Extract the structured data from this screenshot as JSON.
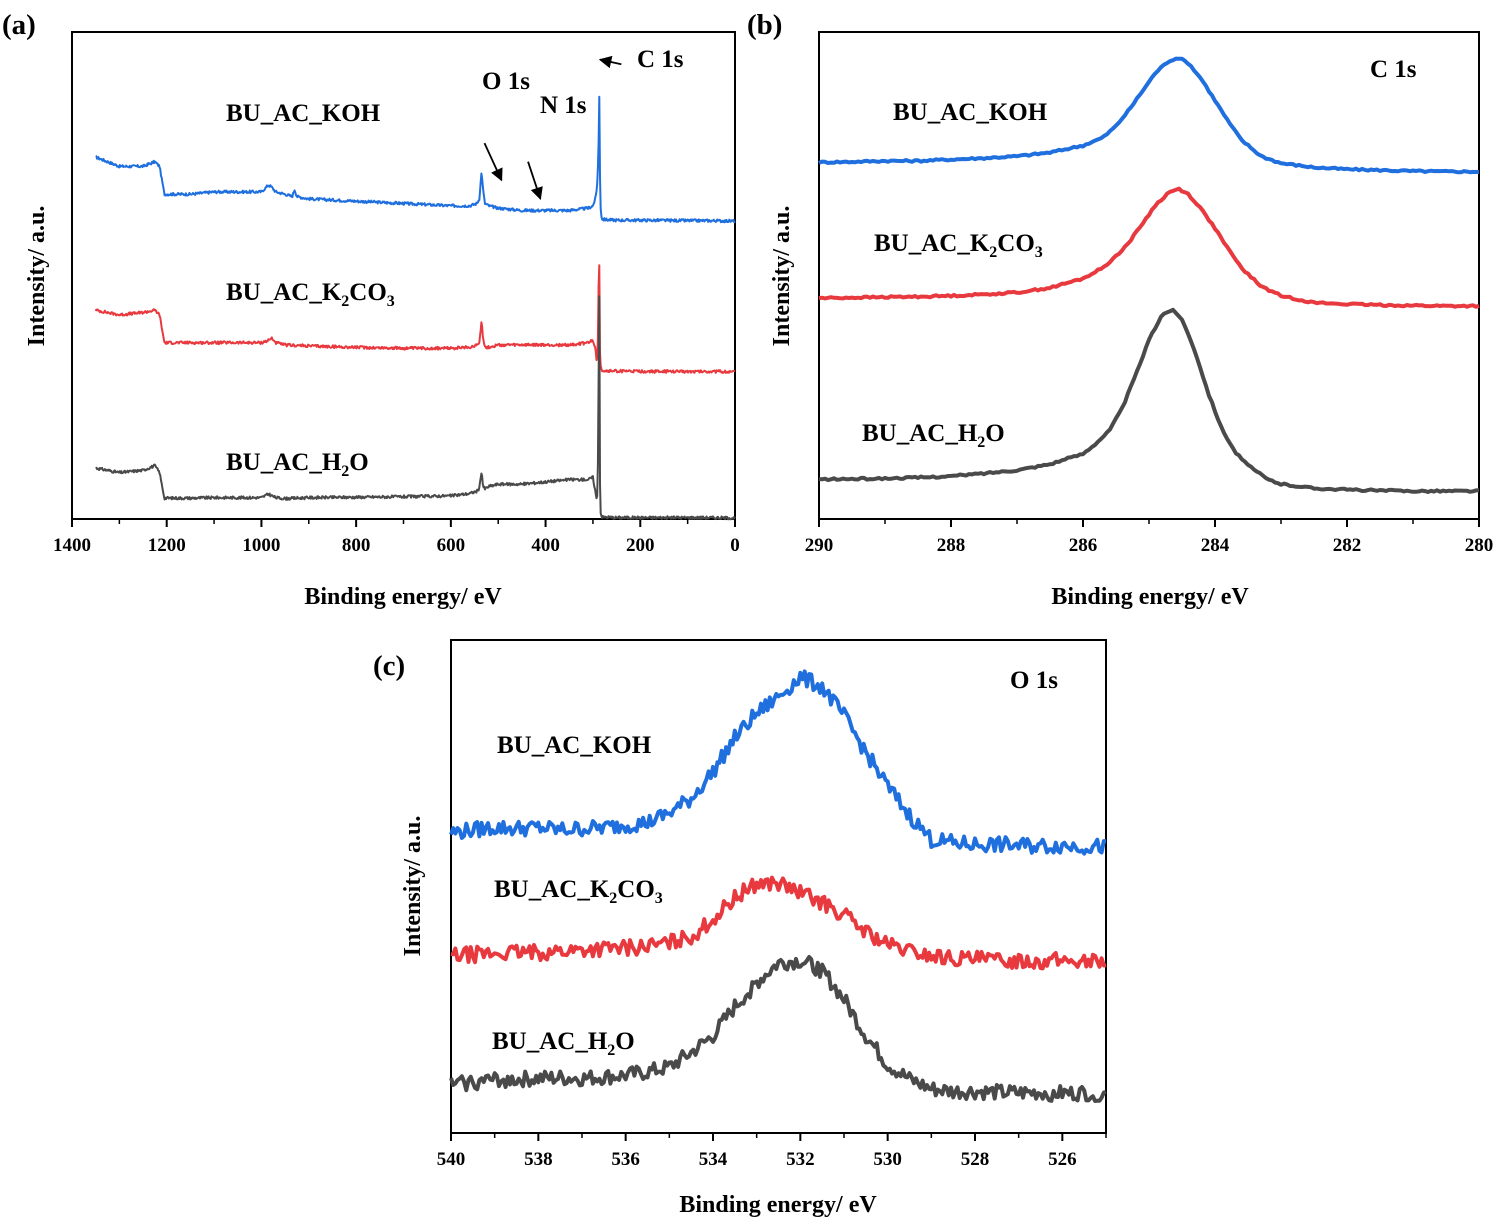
{
  "chart_data": [
    {
      "panel": "(a)",
      "type": "line",
      "title": "",
      "xlabel": "Binding energy/ eV",
      "ylabel": "Intensity/ a.u.",
      "xlim": [
        1400,
        0
      ],
      "x_reversed": true,
      "xticks": [
        1400,
        1200,
        1000,
        800,
        600,
        400,
        200,
        0
      ],
      "ylim": [
        0,
        100
      ],
      "y_ticks_visible": false,
      "series": [
        {
          "name": "BU_AC_KOH",
          "label_main": "BU_AC_KOH",
          "label_sub": "",
          "label_tail": "",
          "color": "#1f6fde",
          "offset": 66,
          "x": [
            1350,
            1300,
            1250,
            1225,
            1215,
            1205,
            1150,
            1100,
            1000,
            985,
            978,
            970,
            950,
            935,
            930,
            925,
            900,
            800,
            700,
            600,
            560,
            545,
            540,
            535,
            532,
            528,
            520,
            500,
            450,
            400,
            350,
            310,
            300,
            295,
            292,
            290,
            288,
            287,
            286,
            285,
            284,
            283,
            282,
            281,
            280,
            270,
            250,
            200,
            100,
            50,
            0
          ],
          "y": [
            78,
            76,
            76,
            77,
            76,
            70,
            70,
            70.5,
            70.5,
            72,
            71.5,
            70.5,
            70,
            69.5,
            71,
            69.5,
            69,
            68.5,
            68,
            67.5,
            67.5,
            68,
            69,
            75,
            71,
            68,
            67.5,
            67,
            66.5,
            66.5,
            66.5,
            67,
            67.5,
            69,
            71,
            74,
            81,
            97,
            85,
            74,
            68,
            66,
            65.2,
            64.8,
            64.6,
            64.5,
            64.4,
            64.4,
            64.3,
            64.3,
            64.2
          ]
        },
        {
          "name": "BU_AC_K2CO3",
          "label_main": "BU_AC_K",
          "label_sub": "2",
          "label_tail": "CO3",
          "color": "#e8393f",
          "offset": 33,
          "x": [
            1350,
            1300,
            1250,
            1225,
            1215,
            1205,
            1150,
            1100,
            1000,
            985,
            978,
            970,
            950,
            900,
            800,
            700,
            600,
            560,
            545,
            540,
            535,
            532,
            528,
            520,
            500,
            450,
            400,
            350,
            310,
            300,
            295,
            292,
            290,
            288,
            287,
            286,
            285,
            284,
            283,
            282,
            281,
            280,
            270,
            250,
            200,
            100,
            50,
            0
          ],
          "y": [
            45,
            44,
            44.5,
            45,
            44,
            38,
            38,
            38,
            38,
            38.5,
            39,
            38,
            37.5,
            37.3,
            37,
            36.8,
            36.8,
            37,
            37.5,
            38,
            43,
            39,
            37,
            37,
            37.5,
            37.5,
            37.5,
            37.5,
            38,
            38.5,
            37,
            34,
            35,
            50,
            65,
            45,
            36,
            33.5,
            32.8,
            32.4,
            32.1,
            32,
            31.9,
            31.9,
            31.8,
            31.8,
            31.8,
            31.7
          ]
        },
        {
          "name": "BU_AC_H2O",
          "label_main": "BU_AC_H",
          "label_sub": "2",
          "label_tail": "O",
          "color": "#4a4a4a",
          "offset": 0,
          "x": [
            1350,
            1300,
            1250,
            1225,
            1215,
            1205,
            1150,
            1100,
            1000,
            985,
            978,
            970,
            950,
            900,
            800,
            700,
            600,
            560,
            545,
            540,
            535,
            532,
            528,
            520,
            500,
            450,
            400,
            350,
            310,
            300,
            295,
            292,
            290,
            288,
            287,
            286,
            285,
            284,
            283,
            282,
            281,
            280,
            270,
            250,
            200,
            100,
            50,
            0
          ],
          "y": [
            11,
            10,
            10.5,
            11.5,
            10,
            4.5,
            4.5,
            4.6,
            4.6,
            5.4,
            5,
            4.6,
            4.4,
            4.6,
            4.7,
            4.8,
            5,
            5.5,
            6,
            6.5,
            10.5,
            7,
            6.5,
            7,
            7.5,
            7.5,
            8,
            8.5,
            8.5,
            9,
            6,
            4,
            6,
            30,
            66,
            30,
            8,
            2,
            0.8,
            0.6,
            0.5,
            0.4,
            0.4,
            0.3,
            0.3,
            0.3,
            0.3,
            0.2
          ]
        }
      ],
      "annotations": [
        {
          "text": "O 1s",
          "arrow_from": [
            529,
            81
          ],
          "arrow_to": [
            493,
            73
          ]
        },
        {
          "text": "N 1s",
          "arrow_from": [
            437,
            77
          ],
          "arrow_to": [
            411,
            69
          ]
        },
        {
          "text": "C 1s",
          "arrow_from": [
            240,
            98
          ],
          "arrow_to": [
            285,
            99
          ]
        }
      ]
    },
    {
      "panel": "(b)",
      "type": "line",
      "title": "C 1s",
      "xlabel": "Binding energy/ eV",
      "ylabel": "Intensity/ a.u.",
      "xlim": [
        290,
        280
      ],
      "x_reversed": true,
      "xticks": [
        290,
        288,
        286,
        284,
        282,
        280
      ],
      "ylim": [
        0,
        100
      ],
      "y_ticks_visible": false,
      "series": [
        {
          "name": "BU_AC_KOH",
          "label_main": "BU_AC_KOH",
          "label_sub": "",
          "label_tail": "",
          "color": "#1f6fde",
          "x": [
            290,
            289.5,
            289,
            288.5,
            288,
            287.5,
            287,
            286.5,
            286,
            285.7,
            285.5,
            285.3,
            285.1,
            284.9,
            284.7,
            284.55,
            284.4,
            284.2,
            284,
            283.8,
            283.6,
            283.3,
            283,
            282.5,
            282,
            281.5,
            281,
            280.5,
            280
          ],
          "y": [
            73.7,
            73.8,
            74,
            74,
            74.3,
            74.6,
            75,
            75.8,
            77.3,
            79,
            81.5,
            85,
            89,
            93,
            95.5,
            96.2,
            95,
            91.5,
            87,
            82.5,
            78.5,
            75,
            73.5,
            72.6,
            72.2,
            72,
            71.8,
            71.7,
            71.7
          ]
        },
        {
          "name": "BU_AC_K2CO3",
          "label_main": "BU_AC_K",
          "label_sub": "2",
          "label_tail": "CO3",
          "color": "#e8393f",
          "x": [
            290,
            289.5,
            289,
            288.5,
            288,
            287.5,
            287,
            286.5,
            286,
            285.7,
            285.5,
            285.3,
            285.1,
            284.9,
            284.7,
            284.55,
            284.4,
            284.2,
            284,
            283.8,
            283.6,
            283.3,
            283,
            282.5,
            282,
            281.5,
            281,
            280.5,
            280
          ],
          "y": [
            44.5,
            44.6,
            44.7,
            44.8,
            45,
            45.3,
            45.7,
            46.7,
            48.7,
            51,
            53.5,
            56.5,
            60.5,
            64.5,
            67.2,
            68,
            66.8,
            63.5,
            59.5,
            55,
            51,
            47,
            45,
            43.5,
            43.2,
            43,
            42.9,
            42.8,
            42.8
          ]
        },
        {
          "name": "BU_AC_H2O",
          "label_main": "BU_AC_H",
          "label_sub": "2",
          "label_tail": "O",
          "color": "#4a4a4a",
          "x": [
            290,
            289.5,
            289,
            288.5,
            288,
            287.5,
            287,
            286.5,
            286,
            285.8,
            285.6,
            285.4,
            285.2,
            285,
            284.8,
            284.65,
            284.5,
            284.3,
            284.1,
            283.9,
            283.7,
            283.5,
            283.2,
            283,
            282.5,
            282,
            281.5,
            281,
            280.5,
            280
          ],
          "y": [
            5.5,
            5.6,
            5.7,
            5.9,
            6.2,
            6.8,
            7.5,
            8.8,
            11,
            13.3,
            16,
            21,
            28,
            35.5,
            41,
            42,
            40,
            33,
            24,
            16.5,
            11.5,
            8.5,
            5.5,
            4.5,
            3.6,
            3.3,
            3.1,
            3,
            3,
            3
          ]
        }
      ]
    },
    {
      "panel": "(c)",
      "type": "line",
      "title": "O 1s",
      "xlabel": "Binding energy/ eV",
      "ylabel": "Intensity/ a.u.",
      "xlim": [
        540,
        525
      ],
      "x_reversed": true,
      "xticks": [
        540,
        538,
        536,
        534,
        532,
        530,
        528,
        526
      ],
      "ylim": [
        0,
        100
      ],
      "y_ticks_visible": false,
      "series": [
        {
          "name": "BU_AC_KOH",
          "label_main": "BU_AC_KOH",
          "label_sub": "",
          "label_tail": "",
          "color": "#1f6fde",
          "x": [
            540,
            539.5,
            539,
            538.5,
            538,
            537.5,
            537,
            536.5,
            536,
            535.5,
            535,
            534.5,
            534,
            533.5,
            533,
            532.5,
            532,
            531.5,
            531,
            530.5,
            530,
            529.5,
            529,
            528.5,
            528,
            527.5,
            527,
            526.5,
            526,
            525.5,
            525
          ],
          "y": [
            62,
            62.5,
            63,
            62.8,
            63,
            62.5,
            62.8,
            63,
            63.5,
            64,
            66,
            69,
            74.5,
            81.5,
            86.5,
            90,
            94,
            92,
            86,
            78.5,
            71.5,
            65.5,
            60.5,
            59.8,
            59.5,
            59.5,
            59.3,
            59.2,
            59.3,
            59.1,
            59
          ]
        },
        {
          "name": "BU_AC_K2CO3",
          "label_main": "BU_AC_K",
          "label_sub": "2",
          "label_tail": "CO3",
          "color": "#e8393f",
          "x": [
            540,
            539.5,
            539,
            538.5,
            538,
            537.5,
            537,
            536.5,
            536,
            535.5,
            535,
            534.5,
            534,
            533.5,
            533,
            532.5,
            532,
            531.5,
            531,
            530.5,
            530,
            529.5,
            529,
            528.5,
            528,
            527.5,
            527,
            526.5,
            526,
            525.5,
            525
          ],
          "y": [
            36.5,
            36.8,
            37,
            37.2,
            37.2,
            37.5,
            37.8,
            38,
            38.2,
            38.5,
            39.2,
            40.5,
            44,
            48.5,
            51.5,
            51.5,
            49.5,
            47.5,
            45,
            41.5,
            38.8,
            37.5,
            36.5,
            36,
            35.8,
            35.6,
            35.6,
            35.5,
            35.6,
            35.4,
            35.4
          ]
        },
        {
          "name": "BU_AC_H2O",
          "label_main": "BU_AC_H",
          "label_sub": "2",
          "label_tail": "O",
          "color": "#4a4a4a",
          "x": [
            540,
            539.5,
            539,
            538.5,
            538,
            537.5,
            537,
            536.5,
            536,
            535.5,
            535,
            534.5,
            534,
            533.5,
            533,
            532.5,
            532,
            531.5,
            531,
            530.5,
            530,
            529.5,
            529,
            528.5,
            528,
            527.5,
            527,
            526.5,
            526,
            525.5,
            525
          ],
          "y": [
            10,
            10.5,
            11,
            11,
            11.2,
            11.3,
            11.2,
            11.5,
            11.8,
            12.5,
            13.5,
            16.5,
            20,
            26,
            31,
            35,
            35.5,
            33.5,
            27.5,
            20,
            14,
            11,
            9,
            8.5,
            8.5,
            8.3,
            8.2,
            8.3,
            8.1,
            8.2,
            8
          ]
        }
      ]
    }
  ]
}
